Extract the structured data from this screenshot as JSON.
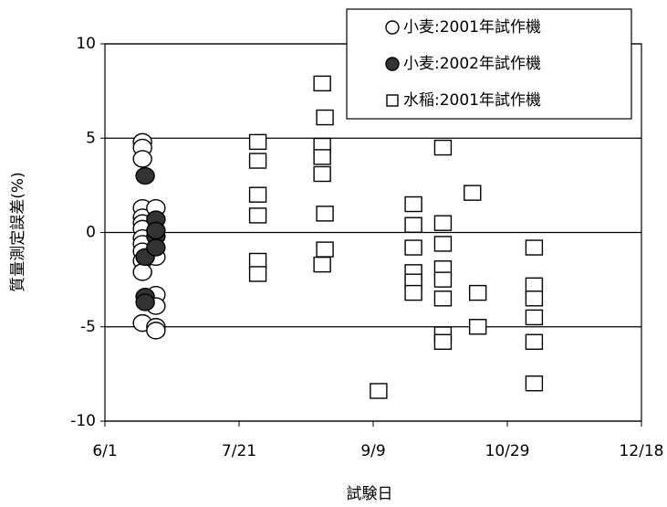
{
  "chart_data": {
    "type": "scatter",
    "xlabel": "試験日",
    "ylabel": "質量測定誤差(%)",
    "xlim": [
      0,
      200
    ],
    "xticks": [
      {
        "value": 0,
        "label": "6/1"
      },
      {
        "value": 50,
        "label": "7/21"
      },
      {
        "value": 100,
        "label": "9/9"
      },
      {
        "value": 150,
        "label": "10/29"
      },
      {
        "value": 200,
        "label": "12/18"
      }
    ],
    "ylim": [
      -10,
      10
    ],
    "yticks": [
      -10,
      -5,
      0,
      5,
      10
    ],
    "grid": true,
    "legend": "upper right",
    "series": [
      {
        "name": "小麦:2001年試作機",
        "marker": "circle-open",
        "color": "#000000",
        "x": [
          14,
          14,
          14,
          14,
          14,
          14,
          14,
          14,
          14,
          14,
          14,
          14,
          14,
          19,
          19,
          19,
          19,
          19,
          19
        ],
        "values": [
          4.8,
          4.5,
          3.9,
          1.3,
          0.8,
          0.5,
          0.2,
          -0.3,
          -0.6,
          -1.0,
          -1.5,
          -2.1,
          -4.8,
          1.3,
          -1.3,
          -3.3,
          -3.9,
          -5.0,
          -5.2
        ]
      },
      {
        "name": "小麦:2002年試作機",
        "marker": "circle-filled",
        "color": "#000000",
        "x": [
          15,
          15,
          15,
          15,
          19,
          19,
          19,
          19
        ],
        "values": [
          3.0,
          -1.3,
          -3.4,
          -3.7,
          0.7,
          -0.2,
          -0.8,
          0.1
        ]
      },
      {
        "name": "水稲:2001年試作機",
        "marker": "square",
        "color": "#000000",
        "x": [
          57,
          57,
          57,
          57,
          57,
          57,
          81,
          82,
          81,
          81,
          81,
          82,
          82,
          81,
          102,
          115,
          115,
          115,
          115,
          115,
          115,
          126,
          126,
          126,
          126,
          126,
          126,
          126,
          126,
          137,
          139,
          139,
          160,
          160,
          160,
          160,
          160,
          160
        ],
        "values": [
          4.8,
          3.8,
          2.0,
          0.9,
          -1.5,
          -2.2,
          7.9,
          6.1,
          4.6,
          4.0,
          3.1,
          1.0,
          -0.9,
          -1.7,
          -8.4,
          1.5,
          0.4,
          -0.8,
          -2.1,
          -2.6,
          -3.2,
          4.5,
          0.5,
          -0.6,
          -1.9,
          -2.5,
          -3.5,
          -5.4,
          -5.8,
          2.1,
          -3.2,
          -5.0,
          -0.8,
          -2.8,
          -3.5,
          -4.5,
          -5.8,
          -8.0
        ]
      }
    ]
  }
}
